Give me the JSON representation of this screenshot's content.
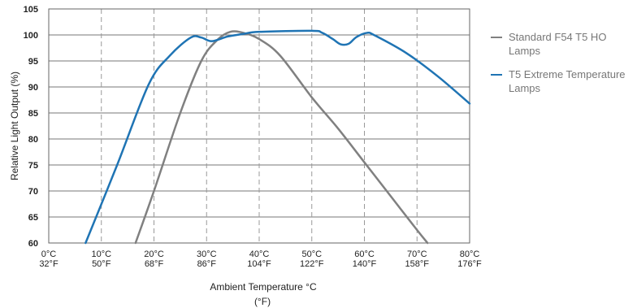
{
  "chart_data": {
    "type": "line",
    "xlabel": "Ambient Temperature °C",
    "xlabel_sub": "(°F)",
    "ylabel": "Relative Light Output (%)",
    "xlim": [
      0,
      80
    ],
    "ylim": [
      60,
      105
    ],
    "yticks": [
      60,
      65,
      70,
      75,
      80,
      85,
      90,
      95,
      100,
      105
    ],
    "xticks": [
      {
        "c": 0,
        "label_c": "0°C",
        "label_f": "32°F"
      },
      {
        "c": 10,
        "label_c": "10°C",
        "label_f": "50°F"
      },
      {
        "c": 20,
        "label_c": "20°C",
        "label_f": "68°F"
      },
      {
        "c": 30,
        "label_c": "30°C",
        "label_f": "86°F"
      },
      {
        "c": 40,
        "label_c": "40°C",
        "label_f": "104°F"
      },
      {
        "c": 50,
        "label_c": "50°C",
        "label_f": "122°F"
      },
      {
        "c": 60,
        "label_c": "60°C",
        "label_f": "140°F"
      },
      {
        "c": 70,
        "label_c": "70°C",
        "label_f": "158°F"
      },
      {
        "c": 80,
        "label_c": "80°C",
        "label_f": "176°F"
      }
    ],
    "grid": {
      "vertical_dashed": true,
      "horizontal": true
    },
    "series": [
      {
        "name": "Standard F54 T5 HO Lamps",
        "color": "#808080",
        "points": [
          [
            16.5,
            60
          ],
          [
            20,
            70
          ],
          [
            25,
            85
          ],
          [
            29,
            95
          ],
          [
            32,
            99
          ],
          [
            34.5,
            100.6
          ],
          [
            37,
            100.4
          ],
          [
            40,
            99.2
          ],
          [
            44,
            96
          ],
          [
            50,
            88
          ],
          [
            55,
            82
          ],
          [
            60,
            75.5
          ],
          [
            65,
            69
          ],
          [
            70,
            62.5
          ],
          [
            72,
            60
          ]
        ]
      },
      {
        "name": "T5 Extreme Temperature Lamps",
        "color": "#1f74b4",
        "points": [
          [
            7,
            60
          ],
          [
            13,
            75
          ],
          [
            19,
            90.5
          ],
          [
            23,
            96
          ],
          [
            27,
            99.5
          ],
          [
            29,
            99.5
          ],
          [
            31,
            98.8
          ],
          [
            34,
            99.7
          ],
          [
            37,
            100.2
          ],
          [
            40,
            100.6
          ],
          [
            50,
            100.8
          ],
          [
            52,
            100.4
          ],
          [
            54,
            99.2
          ],
          [
            55.5,
            98.2
          ],
          [
            57,
            98.3
          ],
          [
            58.5,
            99.6
          ],
          [
            60.5,
            100.4
          ],
          [
            62,
            99.9
          ],
          [
            68,
            96.5
          ],
          [
            74,
            92
          ],
          [
            80,
            86.8
          ]
        ]
      }
    ]
  },
  "legend": {
    "items": [
      {
        "label": "Standard F54 T5 HO Lamps",
        "color": "#808080"
      },
      {
        "label": "T5 Extreme Temperature Lamps",
        "color": "#1f74b4"
      }
    ]
  }
}
